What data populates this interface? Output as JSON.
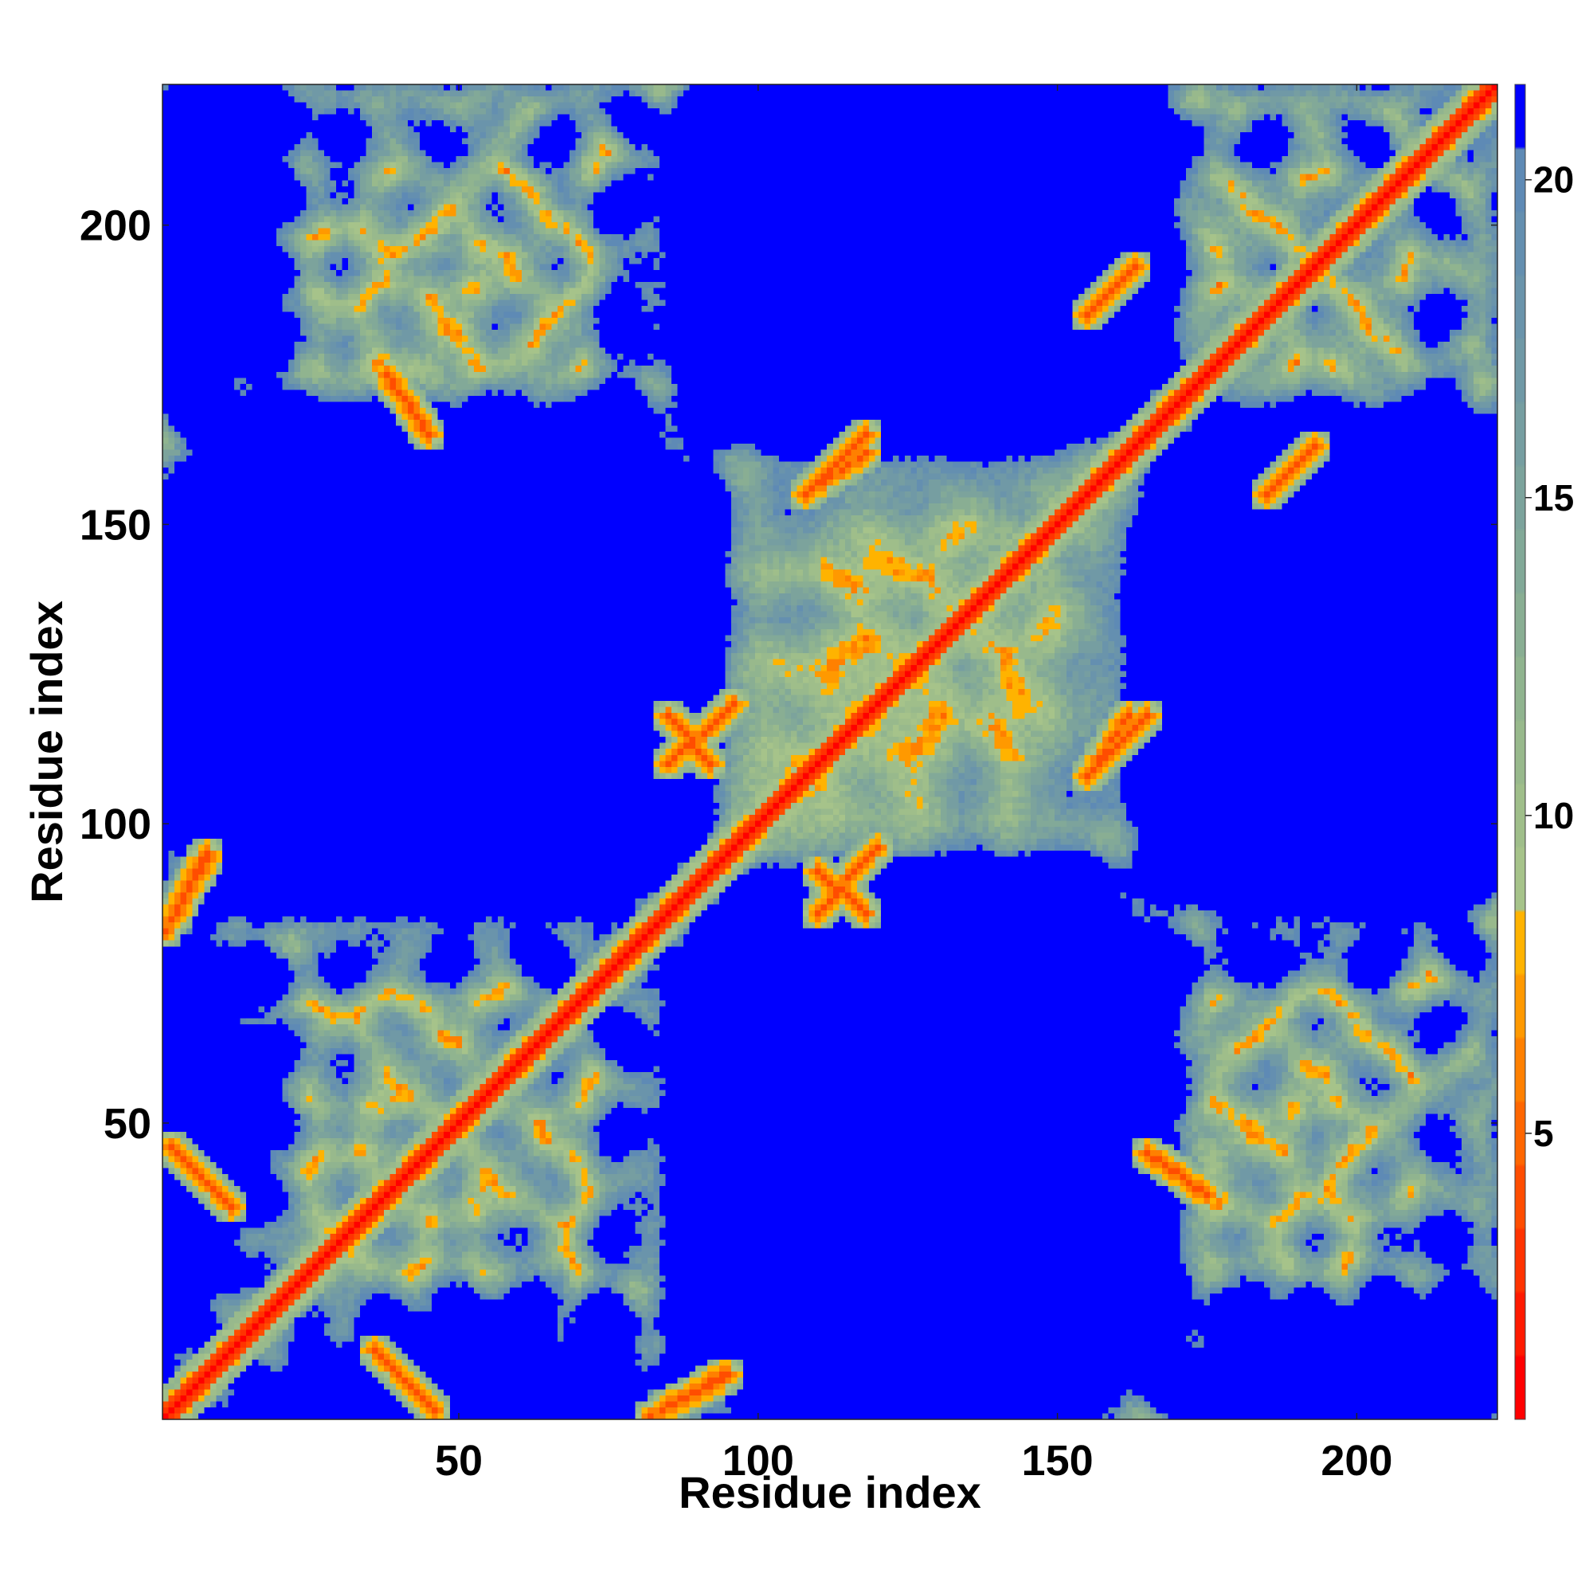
{
  "chart_data": {
    "type": "heatmap",
    "subtype": "residue contact / distance map",
    "title": "",
    "xlabel": "Residue index",
    "ylabel": "Residue index",
    "xlim": [
      1,
      223
    ],
    "ylim": [
      1,
      223
    ],
    "xticks": [
      50,
      100,
      150,
      200
    ],
    "yticks": [
      50,
      100,
      150,
      200
    ],
    "symmetric": true,
    "grid": false,
    "n_residues": 223,
    "colorbar": {
      "ticks": [
        5,
        10,
        15,
        20
      ],
      "range": [
        0.5,
        21.5
      ],
      "saturation_value": 21,
      "bands": [
        {
          "max": 1.5,
          "color": "#ff0000"
        },
        {
          "max": 2.5,
          "color": "#ff1a00"
        },
        {
          "max": 3.5,
          "color": "#ff3300"
        },
        {
          "max": 4.5,
          "color": "#ff4d00"
        },
        {
          "max": 5.5,
          "color": "#ff6600"
        },
        {
          "max": 6.5,
          "color": "#ff8000"
        },
        {
          "max": 7.5,
          "color": "#ff9900"
        },
        {
          "max": 8.5,
          "color": "#ffb300"
        },
        {
          "max": 9.5,
          "color": "#a6c38a"
        },
        {
          "max": 10.5,
          "color": "#9fbe8a"
        },
        {
          "max": 11.5,
          "color": "#98b98c"
        },
        {
          "max": 12.5,
          "color": "#90b48f"
        },
        {
          "max": 13.5,
          "color": "#89ae93"
        },
        {
          "max": 14.5,
          "color": "#82a998"
        },
        {
          "max": 15.5,
          "color": "#7ca39c"
        },
        {
          "max": 16.5,
          "color": "#769ea1"
        },
        {
          "max": 17.5,
          "color": "#7099a6"
        },
        {
          "max": 18.5,
          "color": "#6a94ab"
        },
        {
          "max": 19.5,
          "color": "#648fb0"
        },
        {
          "max": 20.5,
          "color": "#5e8ab5"
        },
        {
          "max": 99,
          "color": "#0000ff"
        }
      ]
    },
    "contact_features": [
      {
        "type": "diagonal",
        "from": 1,
        "to": 223,
        "width": 3
      },
      {
        "type": "antiparallel",
        "i_start": 2,
        "i_end": 12,
        "j_start": 46,
        "j_end": 36
      },
      {
        "type": "antiparallel",
        "i_start": 84,
        "i_end": 95,
        "j_start": 2,
        "j_end": 8
      },
      {
        "type": "parallel",
        "i_start": 1,
        "i_end": 8,
        "j_start": 82,
        "j_end": 94
      },
      {
        "type": "antiparallel",
        "i_start": 85,
        "i_end": 92,
        "j_start": 118,
        "j_end": 110
      },
      {
        "type": "parallel",
        "i_start": 110,
        "i_end": 120,
        "j_start": 85,
        "j_end": 96
      },
      {
        "type": "parallel",
        "i_start": 108,
        "i_end": 118,
        "j_start": 155,
        "j_end": 165
      },
      {
        "type": "parallel",
        "i_start": 155,
        "i_end": 162,
        "j_start": 108,
        "j_end": 118
      },
      {
        "type": "parallel",
        "i_start": 155,
        "i_end": 163,
        "j_start": 185,
        "j_end": 193
      },
      {
        "type": "parallel",
        "i_start": 185,
        "i_end": 193,
        "j_start": 155,
        "j_end": 163
      },
      {
        "type": "antiparallel",
        "i_start": 165,
        "i_end": 175,
        "j_start": 45,
        "j_end": 38
      }
    ]
  }
}
